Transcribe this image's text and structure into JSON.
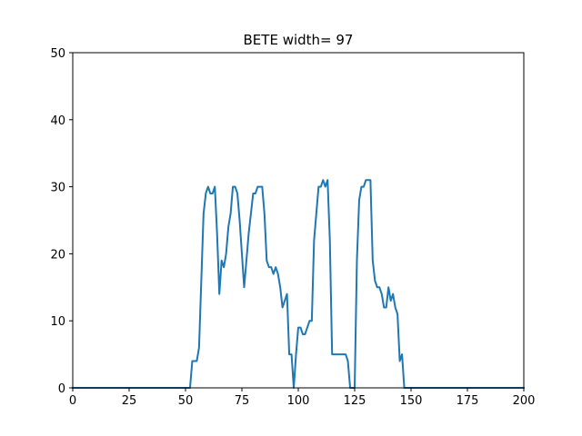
{
  "chart_data": {
    "type": "line",
    "title": "BETE width= 97",
    "xlabel": "",
    "ylabel": "",
    "xlim": [
      0,
      200
    ],
    "ylim": [
      0,
      50
    ],
    "xticks": [
      0,
      25,
      50,
      75,
      100,
      125,
      150,
      175,
      200
    ],
    "yticks": [
      0,
      10,
      20,
      30,
      40,
      50
    ],
    "grid": false,
    "series": [
      {
        "color": "#1f77b4",
        "x": [
          0,
          52,
          53,
          54,
          55,
          56,
          57,
          58,
          59,
          60,
          61,
          62,
          63,
          64,
          65,
          66,
          67,
          68,
          69,
          70,
          71,
          72,
          73,
          74,
          75,
          76,
          77,
          78,
          79,
          80,
          81,
          82,
          83,
          84,
          85,
          86,
          87,
          88,
          89,
          90,
          91,
          92,
          93,
          94,
          95,
          96,
          97,
          98,
          99,
          100,
          101,
          102,
          103,
          104,
          105,
          106,
          107,
          108,
          109,
          110,
          111,
          112,
          113,
          114,
          115,
          116,
          117,
          118,
          119,
          120,
          121,
          122,
          123,
          124,
          125,
          126,
          127,
          128,
          129,
          130,
          131,
          132,
          133,
          134,
          135,
          136,
          137,
          138,
          139,
          140,
          141,
          142,
          143,
          144,
          145,
          146,
          147,
          148,
          149,
          200
        ],
        "y": [
          0,
          0,
          4,
          4,
          4,
          6,
          16,
          26,
          29,
          30,
          29,
          29,
          30,
          23,
          14,
          19,
          18,
          20,
          24,
          26,
          30,
          30,
          29,
          25,
          20,
          15,
          19,
          23,
          26,
          29,
          29,
          30,
          30,
          30,
          26,
          19,
          18,
          18,
          17,
          18,
          17,
          15,
          12,
          13,
          14,
          5,
          5,
          0,
          5,
          9,
          9,
          8,
          8,
          9,
          10,
          10,
          22,
          26,
          30,
          30,
          31,
          30,
          31,
          22,
          5,
          5,
          5,
          5,
          5,
          5,
          5,
          4,
          0,
          0,
          0,
          19,
          28,
          30,
          30,
          31,
          31,
          31,
          19,
          16,
          15,
          15,
          14,
          12,
          12,
          15,
          13,
          14,
          12,
          11,
          4,
          5,
          0,
          0,
          0,
          0
        ]
      }
    ]
  }
}
